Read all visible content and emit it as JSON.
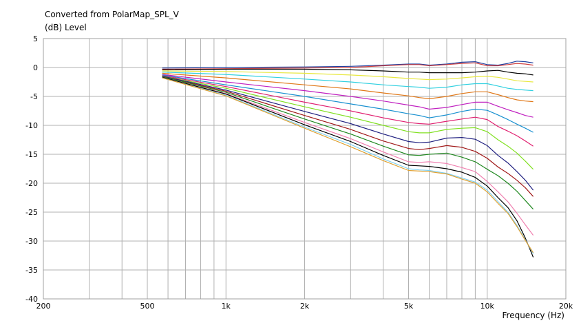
{
  "chart_data": {
    "type": "line",
    "title": "Converted from PolarMap_SPL_V",
    "ylabel": "(dB)  Level",
    "xlabel": "Frequency  (Hz)",
    "xscale": "log",
    "xlim": [
      200,
      20000
    ],
    "ylim": [
      -40,
      5
    ],
    "grid": true,
    "x_ticks": [
      200,
      500,
      1000,
      2000,
      5000,
      10000,
      20000
    ],
    "x_tick_labels": [
      "200",
      "500",
      "1k",
      "2k",
      "5k",
      "10k",
      "20k"
    ],
    "y_ticks": [
      5,
      0,
      -5,
      -10,
      -15,
      -20,
      -25,
      -30,
      -35,
      -40
    ],
    "y_tick_labels": [
      "5",
      "0",
      "-5",
      "-10",
      "-15",
      "-20",
      "-25",
      "-30",
      "-35",
      "-40"
    ],
    "x": [
      570,
      1000,
      2000,
      3000,
      4000,
      5000,
      5500,
      6000,
      7000,
      8000,
      9000,
      10000,
      11000,
      12000,
      13000,
      14000,
      15000
    ],
    "series": [
      {
        "color": "#1f3f9f",
        "values": [
          -0.1,
          0.0,
          0.1,
          0.2,
          0.4,
          0.6,
          0.6,
          0.4,
          0.6,
          0.9,
          1.0,
          0.5,
          0.4,
          0.7,
          1.1,
          1.0,
          0.8
        ]
      },
      {
        "color": "#d04040",
        "values": [
          -0.3,
          -0.2,
          -0.1,
          0.0,
          0.3,
          0.5,
          0.5,
          0.3,
          0.5,
          0.7,
          0.8,
          0.3,
          0.3,
          0.5,
          0.7,
          0.6,
          0.4
        ]
      },
      {
        "color": "#000000",
        "values": [
          -0.4,
          -0.3,
          -0.3,
          -0.4,
          -0.6,
          -0.8,
          -0.8,
          -0.9,
          -0.9,
          -0.9,
          -0.8,
          -0.6,
          -0.5,
          -0.8,
          -1.0,
          -1.1,
          -1.3
        ]
      },
      {
        "color": "#e8e840",
        "values": [
          -0.6,
          -0.7,
          -1.0,
          -1.3,
          -1.6,
          -1.9,
          -2.0,
          -2.1,
          -2.0,
          -1.8,
          -1.6,
          -1.5,
          -1.7,
          -2.0,
          -2.3,
          -2.4,
          -2.5
        ]
      },
      {
        "color": "#30d0e0",
        "values": [
          -0.8,
          -1.2,
          -2.0,
          -2.5,
          -3.0,
          -3.3,
          -3.4,
          -3.6,
          -3.4,
          -3.0,
          -2.8,
          -2.8,
          -3.2,
          -3.6,
          -3.8,
          -3.9,
          -4.0
        ]
      },
      {
        "color": "#e07818",
        "values": [
          -1.0,
          -1.8,
          -3.0,
          -3.7,
          -4.4,
          -4.9,
          -5.2,
          -5.4,
          -5.0,
          -4.5,
          -4.2,
          -4.2,
          -4.7,
          -5.2,
          -5.6,
          -5.8,
          -5.9
        ]
      },
      {
        "color": "#c020c0",
        "values": [
          -1.2,
          -2.5,
          -4.0,
          -5.0,
          -5.8,
          -6.5,
          -6.8,
          -7.2,
          -6.9,
          -6.4,
          -6.0,
          -6.0,
          -6.7,
          -7.3,
          -7.8,
          -8.3,
          -8.6
        ]
      },
      {
        "color": "#1890d0",
        "values": [
          -1.3,
          -3.0,
          -5.0,
          -6.3,
          -7.2,
          -8.0,
          -8.3,
          -8.7,
          -8.2,
          -7.6,
          -7.2,
          -7.4,
          -8.2,
          -9.0,
          -9.8,
          -10.5,
          -11.2
        ]
      },
      {
        "color": "#e02070",
        "values": [
          -1.4,
          -3.3,
          -6.0,
          -7.5,
          -8.7,
          -9.5,
          -9.7,
          -9.8,
          -9.3,
          -8.9,
          -8.6,
          -9.0,
          -10.2,
          -11.0,
          -11.8,
          -12.7,
          -13.6
        ]
      },
      {
        "color": "#80e020",
        "values": [
          -1.5,
          -3.6,
          -6.8,
          -8.6,
          -10.0,
          -11.1,
          -11.3,
          -11.3,
          -10.7,
          -10.5,
          -10.4,
          -11.1,
          -12.5,
          -13.6,
          -14.8,
          -16.2,
          -17.6
        ]
      },
      {
        "color": "#202080",
        "values": [
          -1.5,
          -3.9,
          -7.6,
          -9.7,
          -11.5,
          -12.8,
          -13.0,
          -12.9,
          -12.2,
          -12.1,
          -12.4,
          -13.5,
          -15.2,
          -16.5,
          -18.0,
          -19.5,
          -21.2
        ]
      },
      {
        "color": "#a01818",
        "values": [
          -1.6,
          -4.1,
          -8.3,
          -10.7,
          -12.7,
          -14.0,
          -14.2,
          -14.0,
          -13.5,
          -13.8,
          -14.5,
          -15.7,
          -17.2,
          -18.3,
          -19.5,
          -20.8,
          -22.3
        ]
      },
      {
        "color": "#208820",
        "values": [
          -1.6,
          -4.3,
          -8.9,
          -11.5,
          -13.6,
          -15.1,
          -15.2,
          -15.0,
          -14.8,
          -15.5,
          -16.3,
          -17.6,
          -18.7,
          -20.0,
          -21.4,
          -23.0,
          -24.5
        ]
      },
      {
        "color": "#f080b0",
        "values": [
          -1.7,
          -4.5,
          -9.5,
          -12.3,
          -14.6,
          -16.3,
          -16.4,
          -16.3,
          -16.6,
          -17.3,
          -18.0,
          -19.7,
          -21.5,
          -23.2,
          -25.2,
          -27.2,
          -29.0
        ]
      },
      {
        "color": "#000000",
        "values": [
          -1.7,
          -4.6,
          -9.9,
          -12.8,
          -15.2,
          -16.9,
          -17.0,
          -17.1,
          -17.5,
          -18.1,
          -19.0,
          -20.5,
          -22.5,
          -24.2,
          -26.5,
          -29.5,
          -32.8
        ]
      },
      {
        "color": "#80d0f0",
        "values": [
          -1.8,
          -4.8,
          -10.3,
          -13.3,
          -15.8,
          -17.5,
          -17.7,
          -17.8,
          -18.3,
          -19.1,
          -19.8,
          -21.2,
          -23.2,
          -25.0,
          -27.3,
          -29.8,
          -32.2
        ]
      },
      {
        "color": "#e0a030",
        "values": [
          -1.8,
          -4.9,
          -10.5,
          -13.7,
          -16.1,
          -17.8,
          -17.9,
          -18.0,
          -18.4,
          -19.3,
          -20.0,
          -21.5,
          -23.5,
          -25.2,
          -27.5,
          -29.9,
          -32.0
        ]
      }
    ]
  }
}
